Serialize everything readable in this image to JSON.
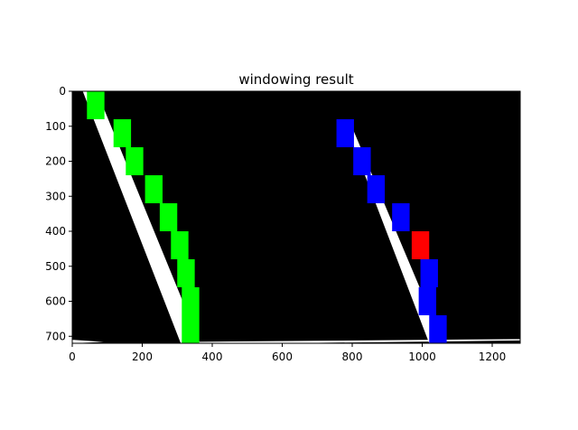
{
  "chart_data": {
    "type": "heatmap",
    "title": "windowing result",
    "xlabel": "",
    "ylabel": "",
    "xlim": [
      0,
      1280
    ],
    "ylim": [
      720,
      0
    ],
    "x_ticks": [
      0,
      200,
      400,
      600,
      800,
      1000,
      1200
    ],
    "y_ticks": [
      0,
      100,
      200,
      300,
      400,
      500,
      600,
      700
    ],
    "background_color": "#000000",
    "lane_pixel_color": "#ffffff",
    "left_lane_pixels": [
      [
        [
          30,
          0
        ],
        [
          70,
          0
        ],
        [
          365,
          720
        ],
        [
          310,
          720
        ]
      ]
    ],
    "right_lane_pixels": [
      [
        [
          775,
          80
        ],
        [
          790,
          80
        ],
        [
          1060,
          720
        ],
        [
          1020,
          720
        ]
      ]
    ],
    "road_edge_pixels": [
      [
        [
          0,
          710
        ],
        [
          90,
          716
        ],
        [
          0,
          720
        ]
      ],
      [
        [
          330,
          716
        ],
        [
          1280,
          708
        ],
        [
          1280,
          712
        ],
        [
          600,
          720
        ],
        [
          330,
          720
        ]
      ]
    ],
    "window_colors": {
      "left": "#00ff00",
      "right": "#0000ff",
      "highlight": "#ff0000"
    },
    "window_size": [
      50,
      80
    ],
    "left_windows": [
      {
        "x": 67,
        "y": 40
      },
      {
        "x": 143,
        "y": 120
      },
      {
        "x": 178,
        "y": 200
      },
      {
        "x": 233,
        "y": 280
      },
      {
        "x": 275,
        "y": 360
      },
      {
        "x": 307,
        "y": 440
      },
      {
        "x": 325,
        "y": 520
      },
      {
        "x": 338,
        "y": 600
      },
      {
        "x": 338,
        "y": 680
      }
    ],
    "right_windows": [
      {
        "x": 780,
        "y": 120,
        "color": "#0000ff"
      },
      {
        "x": 828,
        "y": 200,
        "color": "#0000ff"
      },
      {
        "x": 868,
        "y": 280,
        "color": "#0000ff"
      },
      {
        "x": 939,
        "y": 360,
        "color": "#0000ff"
      },
      {
        "x": 995,
        "y": 440,
        "color": "#ff0000"
      },
      {
        "x": 1020,
        "y": 520,
        "color": "#0000ff"
      },
      {
        "x": 1015,
        "y": 600,
        "color": "#0000ff"
      },
      {
        "x": 1045,
        "y": 680,
        "color": "#0000ff"
      }
    ]
  }
}
